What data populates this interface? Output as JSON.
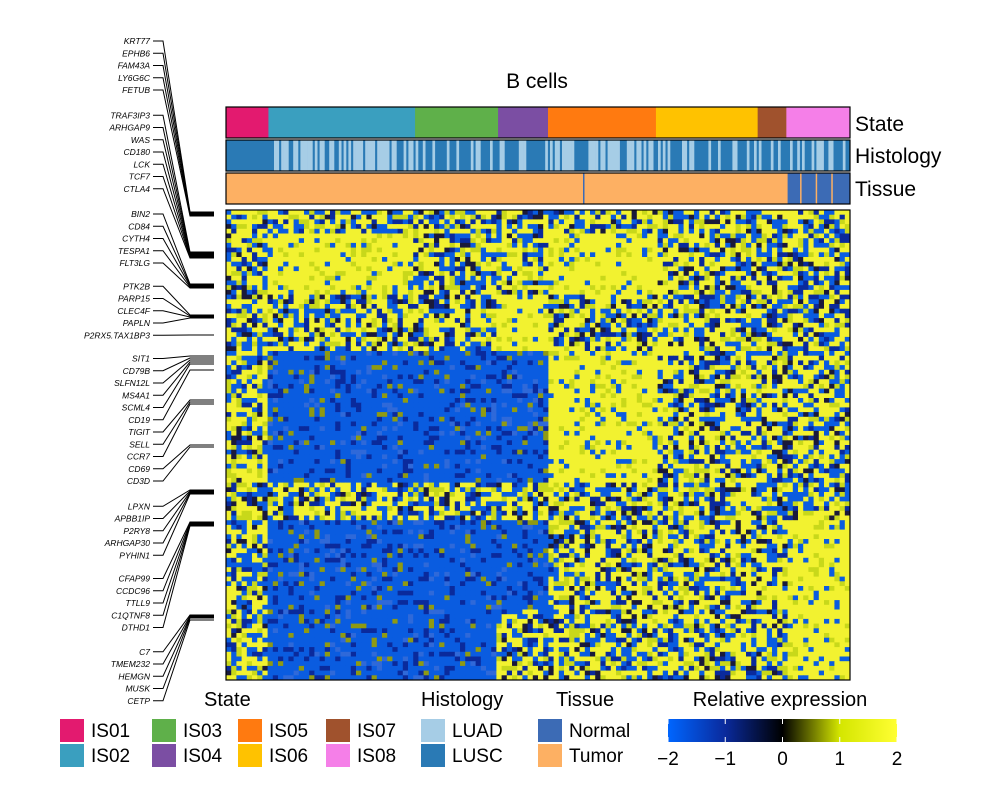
{
  "chart_data": {
    "type": "heatmap",
    "title": "B cells",
    "annotation_tracks": [
      "State",
      "Histology",
      "Tissue"
    ],
    "state_blocks": [
      {
        "state": "IS01",
        "proportion": 0.068
      },
      {
        "state": "IS02",
        "proportion": 0.235
      },
      {
        "state": "IS03",
        "proportion": 0.133
      },
      {
        "state": "IS04",
        "proportion": 0.08
      },
      {
        "state": "IS05",
        "proportion": 0.173
      },
      {
        "state": "IS06",
        "proportion": 0.163
      },
      {
        "state": "IS07",
        "proportion": 0.046
      },
      {
        "state": "IS08",
        "proportion": 0.102
      }
    ],
    "tissue_normal_fraction": 0.1,
    "genes": [
      "KRT77",
      "EPHB6",
      "FAM43A",
      "LY6G6C",
      "FETUB",
      "TRAF3IP3",
      "ARHGAP9",
      "WAS",
      "CD180",
      "LCK",
      "TCF7",
      "CTLA4",
      "BIN2",
      "CD84",
      "CYTH4",
      "TESPA1",
      "FLT3LG",
      "PTK2B",
      "PARP15",
      "CLEC4F",
      "PAPLN",
      "P2RX5.TAX1BP3",
      "SIT1",
      "CD79B",
      "SLFN12L",
      "MS4A1",
      "SCML4",
      "CD19",
      "TIGIT",
      "SELL",
      "CCR7",
      "CD69",
      "CD3D",
      "LPXN",
      "APBB1IP",
      "P2RY8",
      "ARHGAP30",
      "PYHIN1",
      "CFAP99",
      "CCDC96",
      "TTLL9",
      "C1QTNF8",
      "DTHD1",
      "C7",
      "TMEM232",
      "HEMGN",
      "MUSK",
      "CETP"
    ],
    "color_scale": {
      "min": -2,
      "max": 2,
      "ticks": [
        -2,
        -1,
        0,
        1,
        2
      ],
      "tick_labels": [
        "−2",
        "−1",
        "0",
        "1",
        "2"
      ],
      "colors": [
        "#0066ff",
        "#0a2a9c",
        "#000000",
        "#d4e600",
        "#ffff33"
      ]
    },
    "legend": {
      "state": {
        "title": "State",
        "items": [
          {
            "label": "IS01",
            "color": "#e31a6f"
          },
          {
            "label": "IS02",
            "color": "#3a9fbf"
          },
          {
            "label": "IS03",
            "color": "#5fb04a"
          },
          {
            "label": "IS04",
            "color": "#7b4ea3"
          },
          {
            "label": "IS05",
            "color": "#ff7a10"
          },
          {
            "label": "IS06",
            "color": "#ffc200"
          },
          {
            "label": "IS07",
            "color": "#a0522d"
          },
          {
            "label": "IS08",
            "color": "#f57fe8"
          }
        ]
      },
      "histology": {
        "title": "Histology",
        "items": [
          {
            "label": "LUAD",
            "color": "#a6cde6"
          },
          {
            "label": "LUSC",
            "color": "#2a7ab5"
          }
        ]
      },
      "tissue": {
        "title": "Tissue",
        "items": [
          {
            "label": "Normal",
            "color": "#3c6bb5"
          },
          {
            "label": "Tumor",
            "color": "#fdb063"
          }
        ]
      },
      "expression": {
        "title": "Relative expression"
      }
    }
  }
}
